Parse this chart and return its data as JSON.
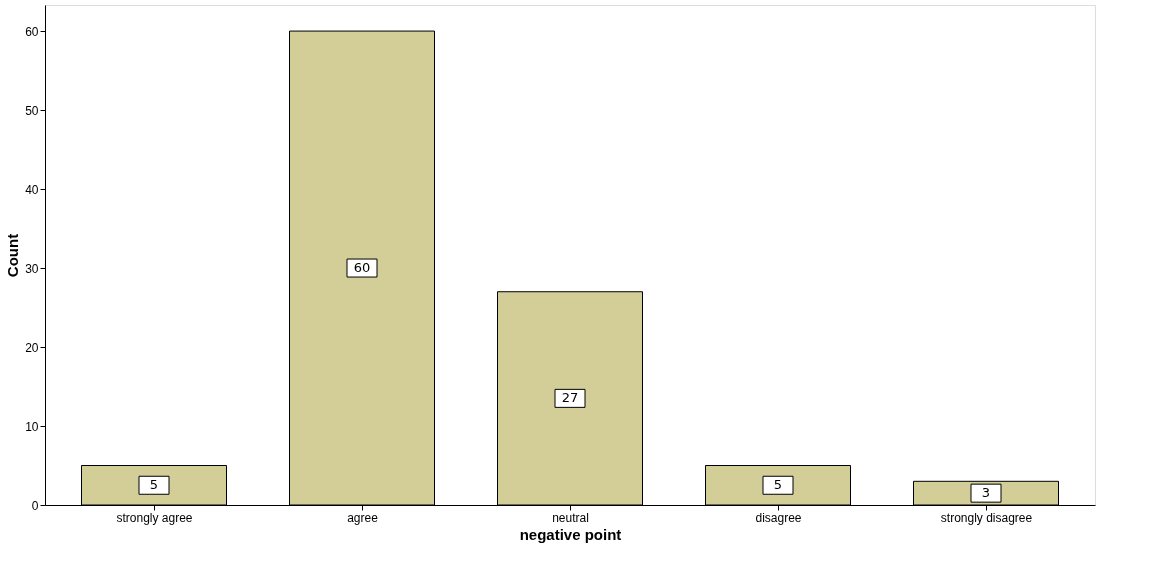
{
  "chart_data": {
    "type": "bar",
    "xlabel": "negative point",
    "ylabel": "Count",
    "categories": [
      "strongly agree",
      "agree",
      "neutral",
      "disagree",
      "strongly disagree"
    ],
    "values": [
      5,
      60,
      27,
      5,
      3
    ],
    "color": "#d3ce97",
    "ylim": [
      0,
      63.3
    ],
    "yticks": [
      0,
      10,
      20,
      30,
      40,
      50,
      60
    ],
    "grid": false,
    "data_labels": true
  }
}
